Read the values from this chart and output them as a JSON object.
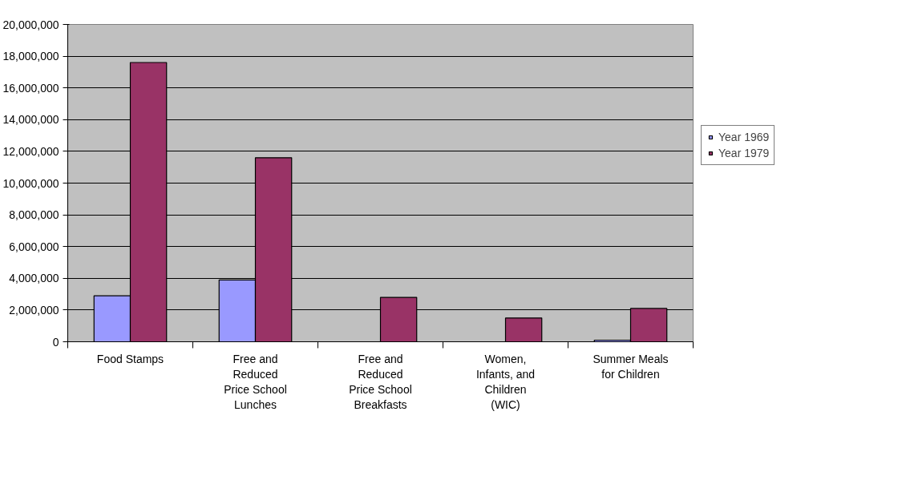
{
  "chart_data": {
    "type": "bar",
    "categories": [
      "Food Stamps",
      "Free and Reduced Price School Lunches",
      "Free and Reduced Price School Breakfasts",
      "Women, Infants, and Children (WIC)",
      "Summer Meals for Children"
    ],
    "series": [
      {
        "name": "Year 1969",
        "color": "#9999ff",
        "values": [
          2900000,
          3900000,
          null,
          null,
          100000
        ]
      },
      {
        "name": "Year 1979",
        "color": "#993366",
        "values": [
          17600000,
          11600000,
          2800000,
          1500000,
          2100000
        ]
      }
    ],
    "ylim": [
      0,
      20000000
    ],
    "yticks": [
      0,
      {
        "value": 2000000,
        "label": "2,000,000"
      },
      {
        "value": 4000000,
        "label": "4,000,000"
      },
      {
        "value": 6000000,
        "label": "6,000,000"
      },
      {
        "value": 8000000,
        "label": "8,000,000"
      },
      {
        "value": 10000000,
        "label": "10,000,000"
      },
      {
        "value": 12000000,
        "label": "12,000,000"
      },
      {
        "value": 14000000,
        "label": "14,000,000"
      },
      {
        "value": 16000000,
        "label": "16,000,000"
      },
      {
        "value": 18000000,
        "label": "18,000,000"
      },
      {
        "value": 20000000,
        "label": "20,000,000"
      }
    ],
    "grid": "y",
    "legend": "right"
  }
}
